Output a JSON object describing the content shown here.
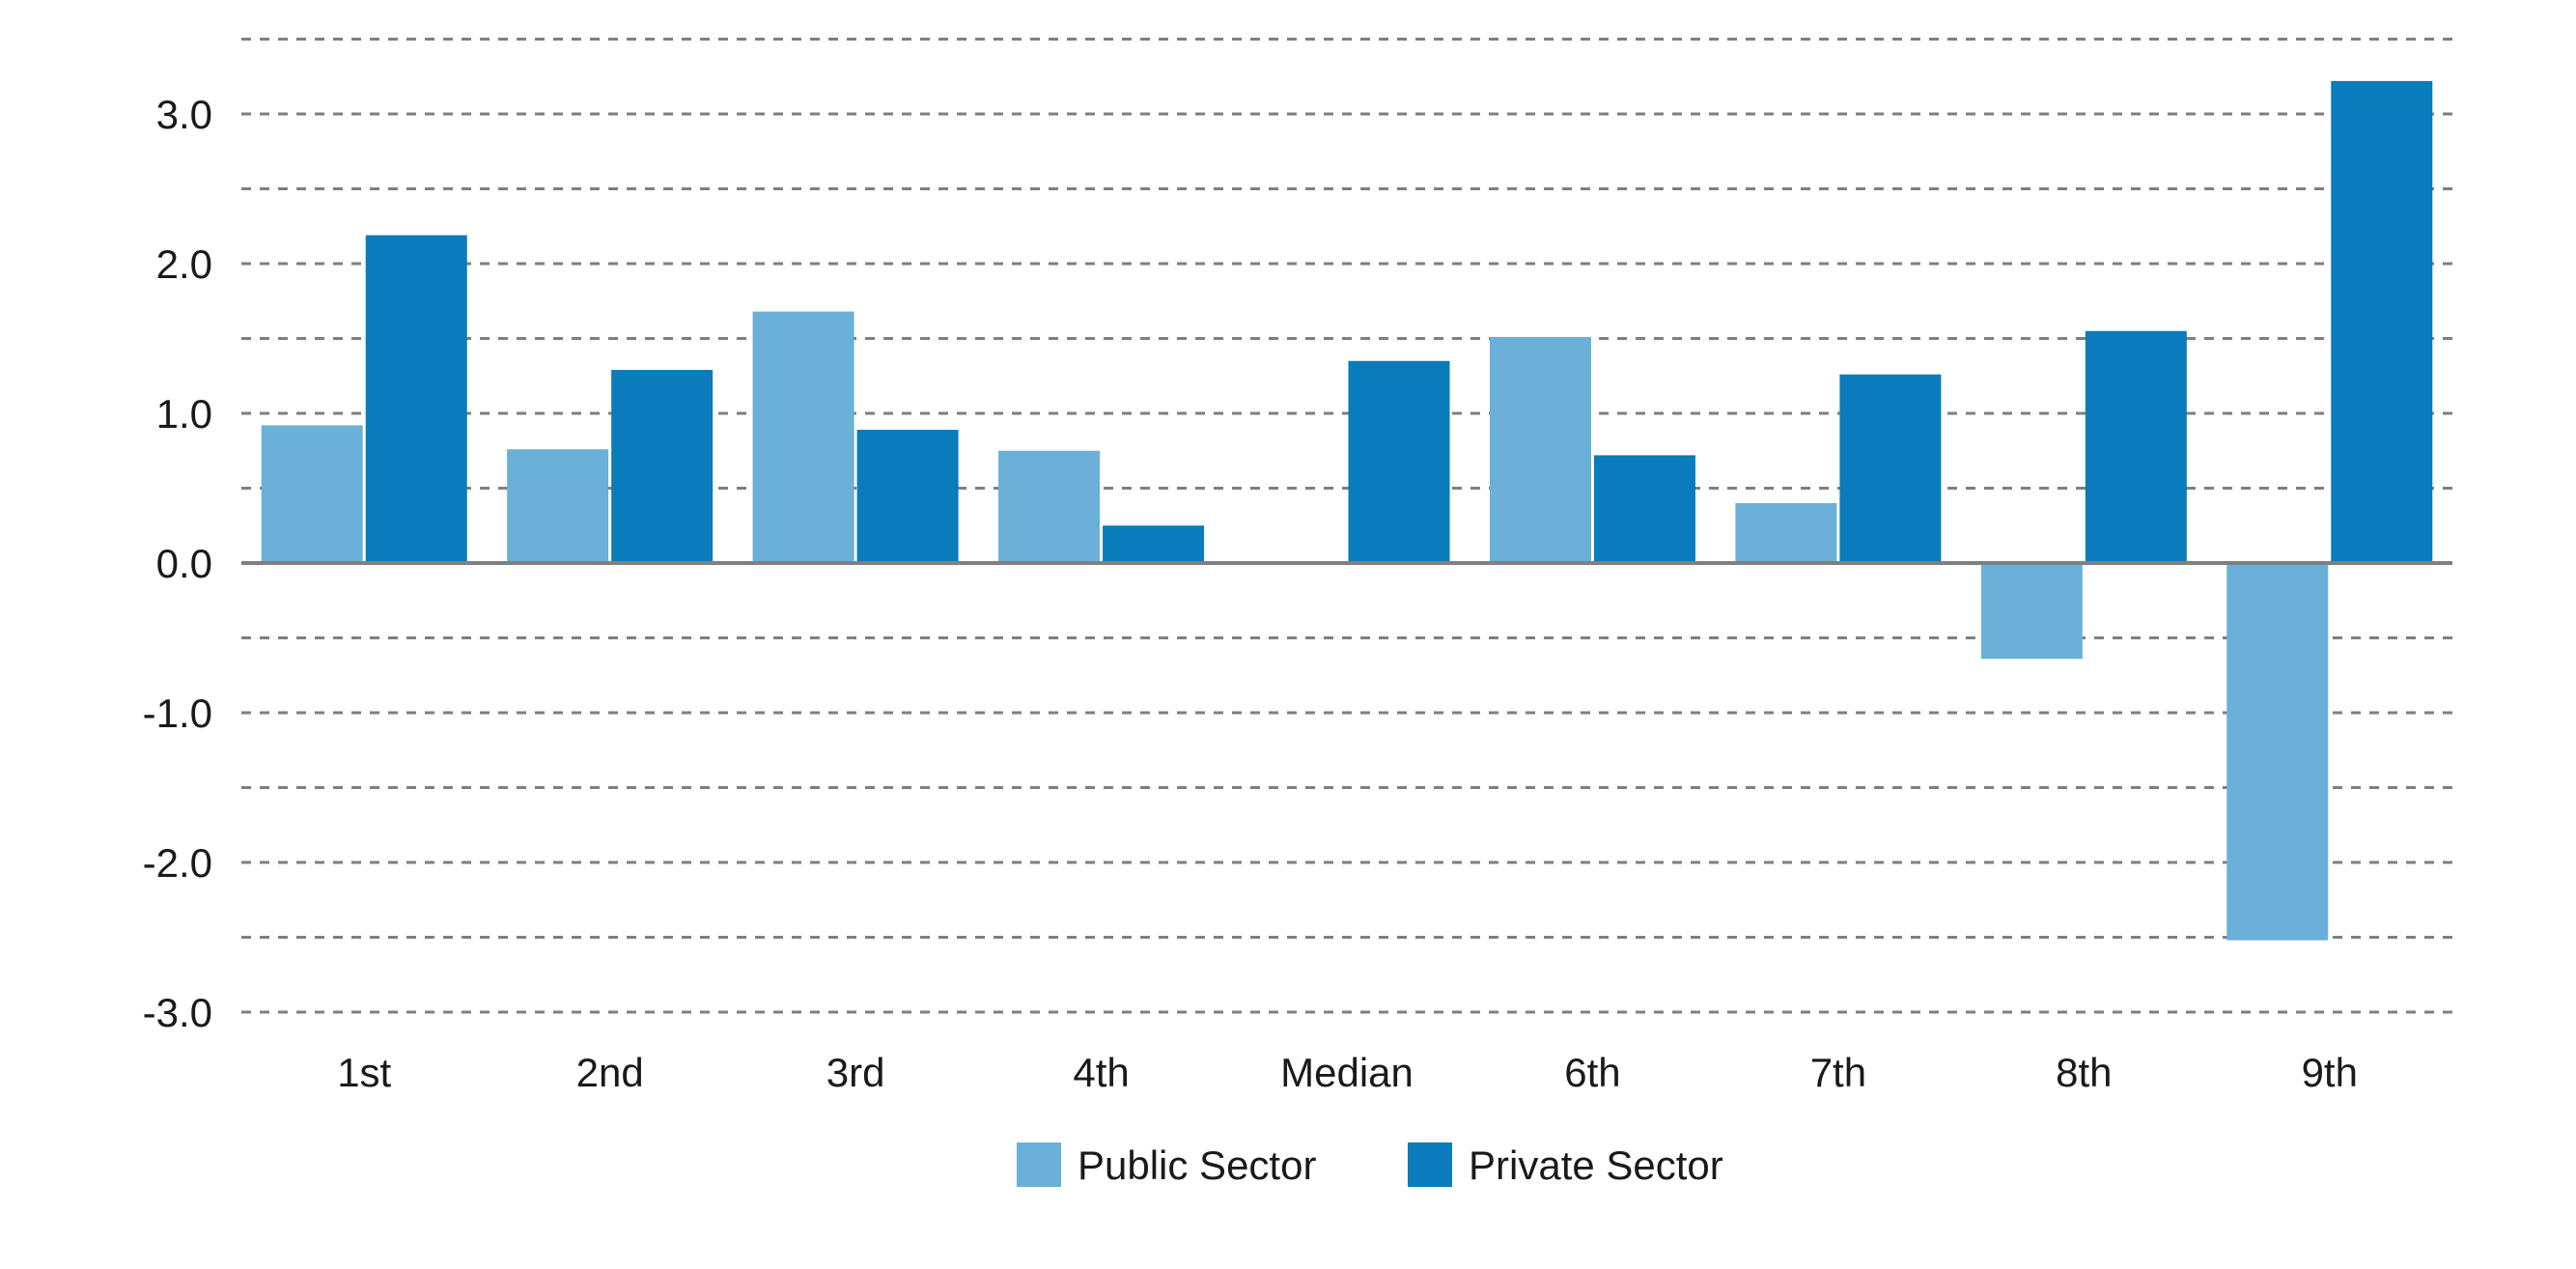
{
  "chart_data": {
    "type": "bar",
    "title": "",
    "xlabel": "",
    "ylabel": "",
    "categories": [
      "1st",
      "2nd",
      "3rd",
      "4th",
      "Median",
      "6th",
      "7th",
      "8th",
      "9th"
    ],
    "series": [
      {
        "name": "Public Sector",
        "color": "#6ab0d8",
        "values": [
          0.92,
          0.76,
          1.68,
          0.75,
          0.0,
          1.51,
          0.4,
          -0.64,
          -2.52
        ]
      },
      {
        "name": "Private Sector",
        "color": "#0a7bbb",
        "values": [
          2.19,
          1.29,
          0.89,
          0.25,
          1.35,
          0.72,
          1.26,
          1.55,
          3.22
        ]
      }
    ],
    "ylim": [
      -3.0,
      3.5
    ],
    "yticks": [
      3.0,
      2.0,
      1.0,
      0.0,
      -1.0,
      -2.0,
      -3.0
    ],
    "ytick_labels": [
      "3.0",
      "2.0",
      "1.0",
      "0.0",
      "-1.0",
      "-2.0",
      "-3.0"
    ],
    "grid": true,
    "grid_style": "dashed",
    "legend_position": "bottom-center",
    "colors": {
      "public": "#6ab0d8",
      "private": "#0a7bbb",
      "grid": "#7f7f7f",
      "zero_line": "#808080",
      "text": "#1a1a1a"
    }
  }
}
